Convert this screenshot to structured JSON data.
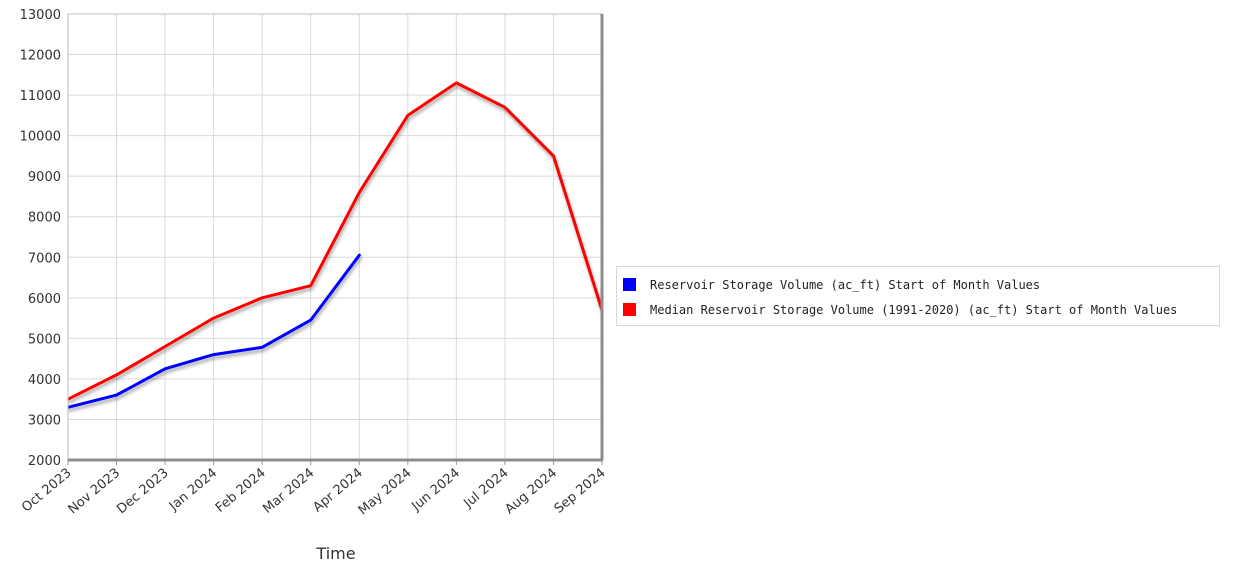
{
  "chart_data": {
    "type": "line",
    "title": "",
    "xlabel": "Time",
    "ylabel": "",
    "categories": [
      "Oct 2023",
      "Nov 2023",
      "Dec 2023",
      "Jan 2024",
      "Feb 2024",
      "Mar 2024",
      "Apr 2024",
      "May 2024",
      "Jun 2024",
      "Jul 2024",
      "Aug 2024",
      "Sep 2024"
    ],
    "ylim": [
      2000,
      13000
    ],
    "yticks": [
      2000,
      3000,
      4000,
      5000,
      6000,
      7000,
      8000,
      9000,
      10000,
      11000,
      12000,
      13000
    ],
    "grid": true,
    "legend_position": "right",
    "series": [
      {
        "name": "Reservoir Storage Volume (ac_ft) Start of Month Values",
        "color": "#0000ff",
        "values": [
          3300,
          3600,
          4250,
          4600,
          4780,
          5450,
          7050,
          null,
          null,
          null,
          null,
          null
        ]
      },
      {
        "name": "Median Reservoir Storage Volume (1991-2020) (ac_ft) Start of Month Values",
        "color": "#ff0000",
        "values": [
          3500,
          4100,
          4800,
          5500,
          6000,
          6300,
          8600,
          10500,
          11300,
          10700,
          9500,
          5700
        ]
      }
    ]
  }
}
